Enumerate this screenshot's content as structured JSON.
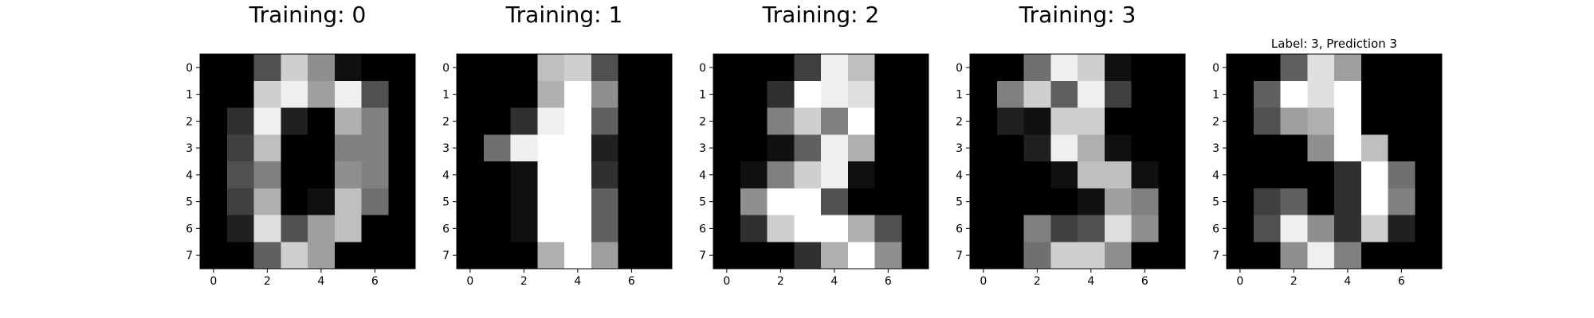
{
  "figure": {
    "background": "#ffffff",
    "colormap": "gray (0 = black, 16 = white)"
  },
  "chart_data": [
    {
      "type": "heatmap",
      "title": "Training: 0",
      "xlabel": "",
      "ylabel": "",
      "x_ticks": [
        0,
        2,
        4,
        6
      ],
      "y_ticks": [
        0,
        1,
        2,
        3,
        4,
        5,
        6,
        7
      ],
      "value_range": [
        0,
        16
      ],
      "values": [
        [
          0,
          0,
          5,
          13,
          9,
          1,
          0,
          0
        ],
        [
          0,
          0,
          13,
          15,
          10,
          15,
          5,
          0
        ],
        [
          0,
          3,
          15,
          2,
          0,
          11,
          8,
          0
        ],
        [
          0,
          4,
          12,
          0,
          0,
          8,
          8,
          0
        ],
        [
          0,
          5,
          8,
          0,
          0,
          9,
          8,
          0
        ],
        [
          0,
          4,
          11,
          0,
          1,
          12,
          7,
          0
        ],
        [
          0,
          2,
          14,
          5,
          10,
          12,
          0,
          0
        ],
        [
          0,
          0,
          6,
          13,
          10,
          0,
          0,
          0
        ]
      ]
    },
    {
      "type": "heatmap",
      "title": "Training: 1",
      "xlabel": "",
      "ylabel": "",
      "x_ticks": [
        0,
        2,
        4,
        6
      ],
      "y_ticks": [
        0,
        1,
        2,
        3,
        4,
        5,
        6,
        7
      ],
      "value_range": [
        0,
        16
      ],
      "values": [
        [
          0,
          0,
          0,
          12,
          13,
          5,
          0,
          0
        ],
        [
          0,
          0,
          0,
          11,
          16,
          9,
          0,
          0
        ],
        [
          0,
          0,
          3,
          15,
          16,
          6,
          0,
          0
        ],
        [
          0,
          7,
          15,
          16,
          16,
          2,
          0,
          0
        ],
        [
          0,
          0,
          1,
          16,
          16,
          3,
          0,
          0
        ],
        [
          0,
          0,
          1,
          16,
          16,
          6,
          0,
          0
        ],
        [
          0,
          0,
          1,
          16,
          16,
          6,
          0,
          0
        ],
        [
          0,
          0,
          0,
          11,
          16,
          10,
          0,
          0
        ]
      ]
    },
    {
      "type": "heatmap",
      "title": "Training: 2",
      "xlabel": "",
      "ylabel": "",
      "x_ticks": [
        0,
        2,
        4,
        6
      ],
      "y_ticks": [
        0,
        1,
        2,
        3,
        4,
        5,
        6,
        7
      ],
      "value_range": [
        0,
        16
      ],
      "values": [
        [
          0,
          0,
          0,
          4,
          15,
          12,
          0,
          0
        ],
        [
          0,
          0,
          3,
          16,
          15,
          14,
          0,
          0
        ],
        [
          0,
          0,
          8,
          13,
          8,
          16,
          0,
          0
        ],
        [
          0,
          0,
          1,
          6,
          15,
          11,
          0,
          0
        ],
        [
          0,
          1,
          8,
          13,
          15,
          1,
          0,
          0
        ],
        [
          0,
          9,
          16,
          16,
          5,
          0,
          0,
          0
        ],
        [
          0,
          3,
          13,
          16,
          16,
          11,
          5,
          0
        ],
        [
          0,
          0,
          0,
          3,
          11,
          16,
          9,
          0
        ]
      ]
    },
    {
      "type": "heatmap",
      "title": "Training: 3",
      "xlabel": "",
      "ylabel": "",
      "x_ticks": [
        0,
        2,
        4,
        6
      ],
      "y_ticks": [
        0,
        1,
        2,
        3,
        4,
        5,
        6,
        7
      ],
      "value_range": [
        0,
        16
      ],
      "values": [
        [
          0,
          0,
          7,
          15,
          13,
          1,
          0,
          0
        ],
        [
          0,
          8,
          13,
          6,
          15,
          4,
          0,
          0
        ],
        [
          0,
          2,
          1,
          13,
          13,
          0,
          0,
          0
        ],
        [
          0,
          0,
          2,
          15,
          11,
          1,
          0,
          0
        ],
        [
          0,
          0,
          0,
          1,
          12,
          12,
          1,
          0
        ],
        [
          0,
          0,
          0,
          0,
          1,
          10,
          8,
          0
        ],
        [
          0,
          0,
          8,
          4,
          5,
          14,
          9,
          0
        ],
        [
          0,
          0,
          7,
          13,
          13,
          9,
          0,
          0
        ]
      ]
    },
    {
      "type": "heatmap",
      "title": "Label: 3, Prediction 3",
      "xlabel": "",
      "ylabel": "",
      "x_ticks": [
        0,
        2,
        4,
        6
      ],
      "y_ticks": [
        0,
        1,
        2,
        3,
        4,
        5,
        6,
        7
      ],
      "value_range": [
        0,
        16
      ],
      "values": [
        [
          0,
          0,
          6,
          14,
          10,
          0,
          0,
          0
        ],
        [
          0,
          6,
          16,
          14,
          16,
          0,
          0,
          0
        ],
        [
          0,
          5,
          10,
          11,
          16,
          0,
          0,
          0
        ],
        [
          0,
          0,
          0,
          9,
          16,
          12,
          0,
          0
        ],
        [
          0,
          0,
          0,
          0,
          3,
          16,
          7,
          0
        ],
        [
          0,
          4,
          6,
          0,
          3,
          16,
          8,
          0
        ],
        [
          0,
          5,
          15,
          9,
          3,
          13,
          2,
          0
        ],
        [
          0,
          0,
          9,
          15,
          8,
          0,
          0,
          0
        ]
      ]
    }
  ]
}
